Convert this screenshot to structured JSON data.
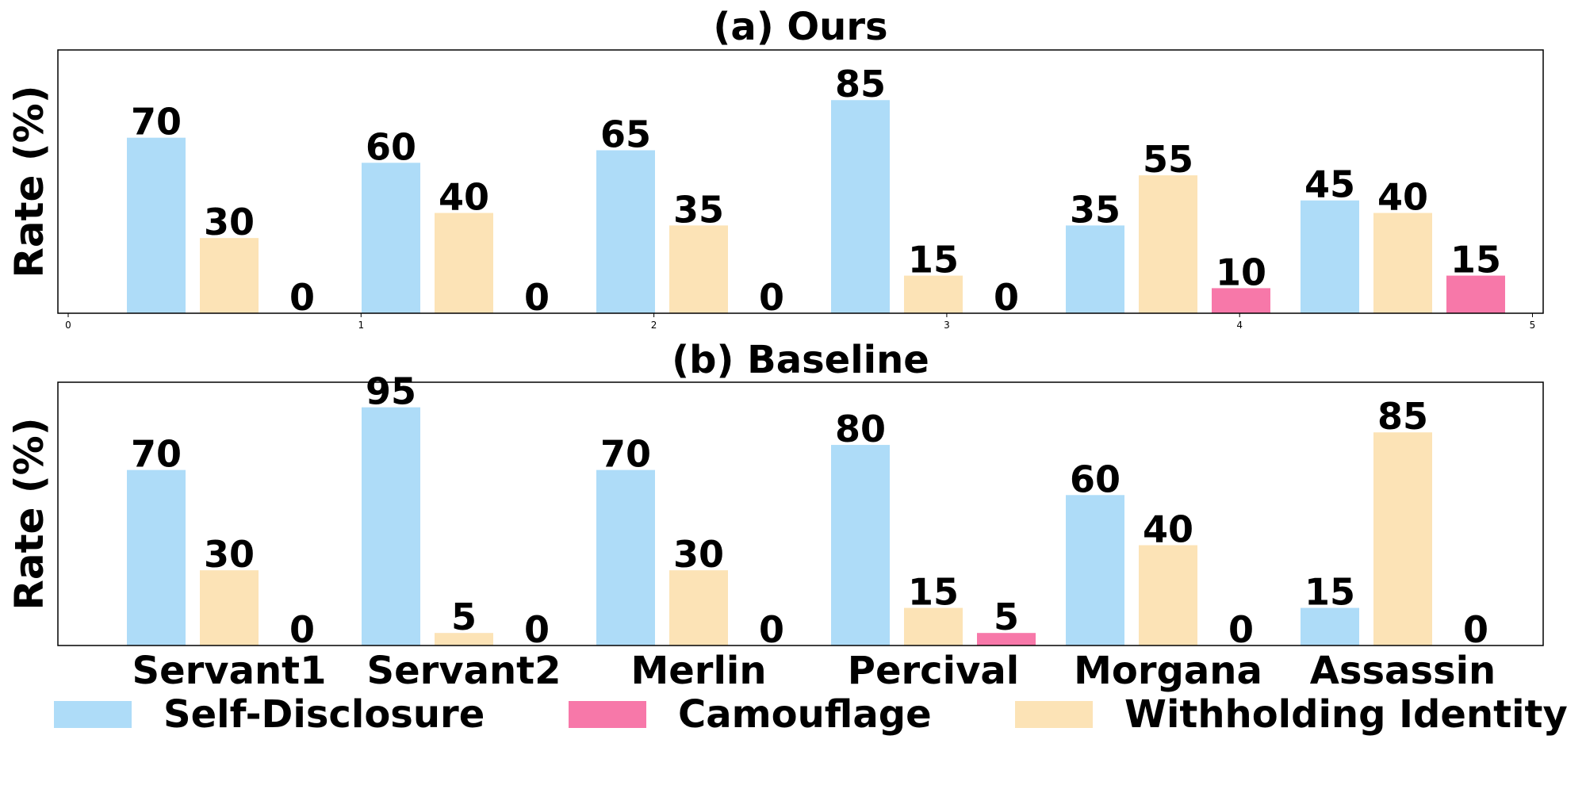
{
  "chart_data": {
    "type": "bar",
    "categories": [
      "Servant1",
      "Servant2",
      "Merlin",
      "Percival",
      "Morgana",
      "Assassin"
    ],
    "legend": {
      "placement": "bottom",
      "entries": [
        {
          "name": "Self-Disclosure",
          "color": "#AEDCF8"
        },
        {
          "name": "Camouflage",
          "color": "#F778A9"
        },
        {
          "name": "Withholding Identity",
          "color": "#FCE3B6"
        }
      ]
    },
    "panels": [
      {
        "title": "(a) Ours",
        "ylabel": "Rate (%)",
        "ylim": [
          0,
          105
        ],
        "x_ticks": [
          "0",
          "1",
          "2",
          "3",
          "4",
          "5"
        ],
        "show_category_labels": false,
        "series": [
          {
            "name": "Self-Disclosure",
            "values": [
              70,
              60,
              65,
              85,
              35,
              45
            ]
          },
          {
            "name": "Withholding Identity",
            "values": [
              30,
              40,
              35,
              15,
              55,
              40
            ]
          },
          {
            "name": "Camouflage",
            "values": [
              0,
              0,
              0,
              0,
              10,
              15
            ]
          }
        ]
      },
      {
        "title": "(b) Baseline",
        "ylabel": "Rate (%)",
        "ylim": [
          0,
          105
        ],
        "x_ticks": [],
        "show_category_labels": true,
        "series": [
          {
            "name": "Self-Disclosure",
            "values": [
              70,
              95,
              70,
              80,
              60,
              15
            ]
          },
          {
            "name": "Withholding Identity",
            "values": [
              30,
              5,
              30,
              15,
              40,
              85
            ]
          },
          {
            "name": "Camouflage",
            "values": [
              0,
              0,
              0,
              5,
              0,
              0
            ]
          }
        ]
      }
    ]
  }
}
